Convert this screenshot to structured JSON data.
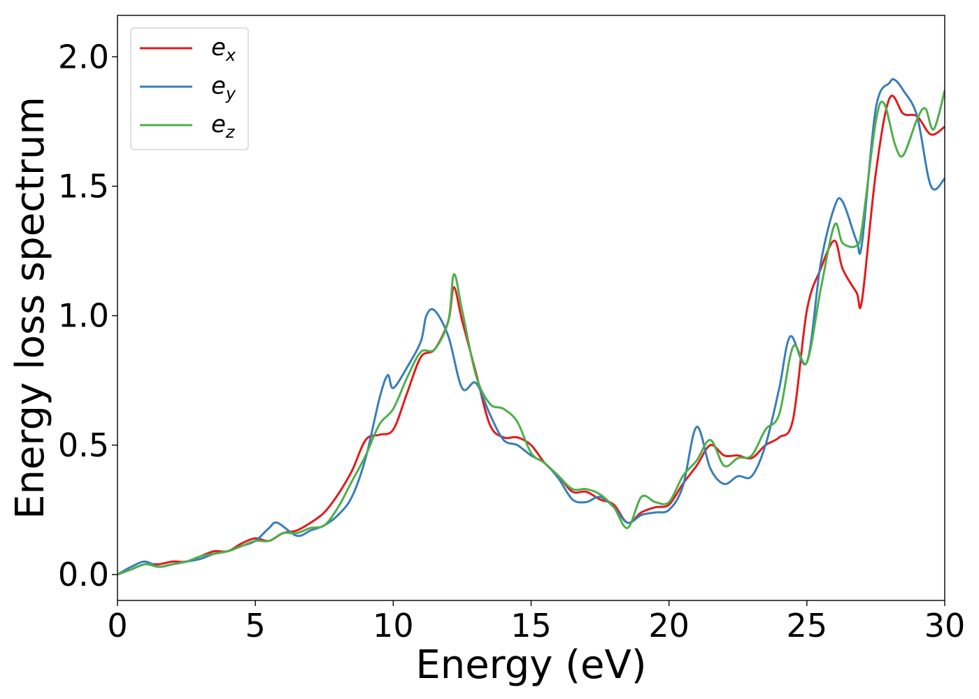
{
  "chart_data": {
    "type": "line",
    "title": "",
    "xlabel": "Energy (eV)",
    "ylabel": "Energy loss spectrum",
    "xlim": [
      0,
      30
    ],
    "ylim": [
      -0.1,
      2.16
    ],
    "xticks": [
      0,
      5,
      10,
      15,
      20,
      25,
      30
    ],
    "xtick_labels": [
      "0",
      "5",
      "10",
      "15",
      "20",
      "25",
      "30"
    ],
    "yticks": [
      0.0,
      0.5,
      1.0,
      1.5,
      2.0
    ],
    "ytick_labels": [
      "0.0",
      "0.5",
      "1.0",
      "1.5",
      "2.0"
    ],
    "grid": false,
    "legend_position": "top-left",
    "series": [
      {
        "name": "e_x",
        "label_base": "e",
        "label_sub": "x",
        "color": "#e41a1c",
        "x": [
          0,
          0.5,
          1,
          1.5,
          2,
          2.5,
          3,
          3.5,
          4,
          4.5,
          5,
          5.5,
          6,
          6.5,
          7,
          7.5,
          8,
          8.5,
          9,
          9.5,
          10,
          10.5,
          11,
          11.5,
          12,
          12.2,
          12.5,
          13,
          13.5,
          14,
          14.5,
          15,
          15.5,
          16,
          16.5,
          17,
          17.5,
          18,
          18.5,
          19,
          19.5,
          20,
          20.5,
          21,
          21.5,
          22,
          22.5,
          23,
          23.5,
          24,
          24.5,
          25,
          25.5,
          26,
          26.3,
          26.8,
          27,
          27.5,
          28,
          28.5,
          29,
          29.5,
          30
        ],
        "y": [
          0.0,
          0.02,
          0.04,
          0.04,
          0.05,
          0.05,
          0.07,
          0.09,
          0.09,
          0.12,
          0.14,
          0.13,
          0.16,
          0.17,
          0.2,
          0.24,
          0.31,
          0.4,
          0.52,
          0.54,
          0.56,
          0.7,
          0.84,
          0.87,
          0.98,
          1.11,
          0.98,
          0.78,
          0.58,
          0.53,
          0.53,
          0.5,
          0.43,
          0.38,
          0.32,
          0.32,
          0.29,
          0.27,
          0.2,
          0.24,
          0.26,
          0.27,
          0.35,
          0.42,
          0.5,
          0.46,
          0.46,
          0.45,
          0.5,
          0.53,
          0.6,
          1.02,
          1.18,
          1.29,
          1.18,
          1.09,
          1.06,
          1.55,
          1.84,
          1.78,
          1.77,
          1.7,
          1.73
        ]
      },
      {
        "name": "e_y",
        "label_base": "e",
        "label_sub": "y",
        "color": "#377eb8",
        "x": [
          0,
          0.5,
          1,
          1.5,
          2,
          2.5,
          3,
          3.5,
          4,
          4.5,
          5,
          5.5,
          5.8,
          6.5,
          7,
          7.5,
          8,
          8.5,
          9,
          9.5,
          9.8,
          10,
          10.5,
          11,
          11.2,
          11.5,
          12,
          12.5,
          13,
          13.5,
          14,
          14.5,
          15,
          15.5,
          16,
          16.5,
          17,
          17.5,
          18,
          18.5,
          19,
          19.5,
          20,
          20.5,
          21,
          21.5,
          22,
          22.5,
          23,
          23.5,
          24,
          24.4,
          25,
          25.5,
          26,
          26.3,
          26.8,
          27,
          27.5,
          28,
          28.2,
          28.5,
          29,
          29.5,
          30
        ],
        "y": [
          0.0,
          0.03,
          0.05,
          0.03,
          0.04,
          0.05,
          0.06,
          0.08,
          0.09,
          0.11,
          0.13,
          0.18,
          0.2,
          0.15,
          0.17,
          0.19,
          0.23,
          0.3,
          0.45,
          0.68,
          0.77,
          0.72,
          0.8,
          0.9,
          1.0,
          1.02,
          0.92,
          0.72,
          0.74,
          0.62,
          0.52,
          0.5,
          0.46,
          0.43,
          0.37,
          0.29,
          0.28,
          0.3,
          0.26,
          0.2,
          0.23,
          0.24,
          0.25,
          0.34,
          0.57,
          0.41,
          0.35,
          0.38,
          0.38,
          0.5,
          0.72,
          0.92,
          0.82,
          1.2,
          1.42,
          1.44,
          1.29,
          1.28,
          1.8,
          1.9,
          1.91,
          1.87,
          1.77,
          1.5,
          1.53
        ]
      },
      {
        "name": "e_z",
        "label_base": "e",
        "label_sub": "z",
        "color": "#4daf4a",
        "x": [
          0,
          0.5,
          1,
          1.5,
          2,
          2.5,
          3,
          3.5,
          4,
          4.5,
          5,
          5.5,
          6,
          6.5,
          7,
          7.5,
          8,
          8.5,
          9,
          9.5,
          10,
          10.5,
          11,
          11.5,
          12,
          12.2,
          12.5,
          13,
          13.5,
          14,
          14.5,
          15,
          15.5,
          16,
          16.5,
          17,
          17.5,
          18,
          18.5,
          19,
          19.5,
          20,
          20.5,
          21,
          21.5,
          22,
          22.5,
          23,
          23.5,
          24,
          24.5,
          25,
          25.5,
          26,
          26.3,
          26.8,
          27,
          27.5,
          27.8,
          28.2,
          28.5,
          29,
          29.3,
          29.6,
          30
        ],
        "y": [
          0.0,
          0.02,
          0.04,
          0.03,
          0.04,
          0.05,
          0.07,
          0.08,
          0.09,
          0.11,
          0.13,
          0.13,
          0.16,
          0.16,
          0.18,
          0.19,
          0.26,
          0.36,
          0.46,
          0.58,
          0.64,
          0.76,
          0.86,
          0.87,
          0.98,
          1.16,
          1.02,
          0.77,
          0.66,
          0.64,
          0.59,
          0.47,
          0.43,
          0.38,
          0.33,
          0.33,
          0.31,
          0.26,
          0.18,
          0.3,
          0.28,
          0.28,
          0.38,
          0.44,
          0.52,
          0.42,
          0.45,
          0.46,
          0.56,
          0.62,
          0.88,
          0.82,
          1.1,
          1.35,
          1.28,
          1.27,
          1.34,
          1.75,
          1.82,
          1.66,
          1.62,
          1.76,
          1.8,
          1.72,
          1.87
        ]
      }
    ]
  }
}
